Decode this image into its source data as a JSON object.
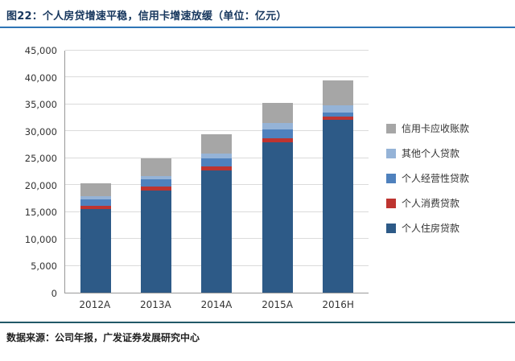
{
  "header": {
    "title": "图22：个人房贷增速平稳，信用卡增速放缓（单位：亿元）"
  },
  "footer": {
    "source": "数据来源：公司年报，广发证券发展研究中心"
  },
  "colors": {
    "title_text": "#17375E",
    "title_rule": "#2E75B6",
    "footer_rule": "#215968",
    "gridline": "#DBDBDB"
  },
  "chart_data": {
    "type": "bar",
    "stacked": true,
    "title": "图22：个人房贷增速平稳，信用卡增速放缓（单位：亿元）",
    "xlabel": "",
    "ylabel": "",
    "unit": "亿元",
    "categories": [
      "2012A",
      "2013A",
      "2014A",
      "2015A",
      "2016H"
    ],
    "series": [
      {
        "name": "个人住房贷款",
        "color": "#2D5A87",
        "values": [
          15500,
          19000,
          22800,
          28000,
          32200
        ]
      },
      {
        "name": "个人消费贷款",
        "color": "#BE3430",
        "values": [
          700,
          800,
          700,
          700,
          600
        ]
      },
      {
        "name": "个人经营性贷款",
        "color": "#4F81BD",
        "values": [
          1200,
          1300,
          1500,
          1600,
          700
        ]
      },
      {
        "name": "其他个人贷款",
        "color": "#95B3D7",
        "values": [
          500,
          600,
          800,
          1200,
          1300
        ]
      },
      {
        "name": "信用卡应收账款",
        "color": "#A6A6A6",
        "values": [
          2500,
          3300,
          3600,
          3800,
          4700
        ]
      }
    ],
    "totals": [
      20400,
      25000,
      29400,
      35300,
      39500
    ],
    "legend": [
      {
        "label": "信用卡应收账款",
        "color": "#A6A6A6"
      },
      {
        "label": "其他个人贷款",
        "color": "#95B3D7"
      },
      {
        "label": "个人经营性贷款",
        "color": "#4F81BD"
      },
      {
        "label": "个人消费贷款",
        "color": "#BE3430"
      },
      {
        "label": "个人住房贷款",
        "color": "#2D5A87"
      }
    ],
    "legend_position": "right",
    "grid": "horizontal",
    "ylim": [
      0,
      45000
    ],
    "ytick_step": 5000,
    "ytick_labels": [
      "0",
      "5,000",
      "10,000",
      "15,000",
      "20,000",
      "25,000",
      "30,000",
      "35,000",
      "40,000",
      "45,000"
    ]
  }
}
